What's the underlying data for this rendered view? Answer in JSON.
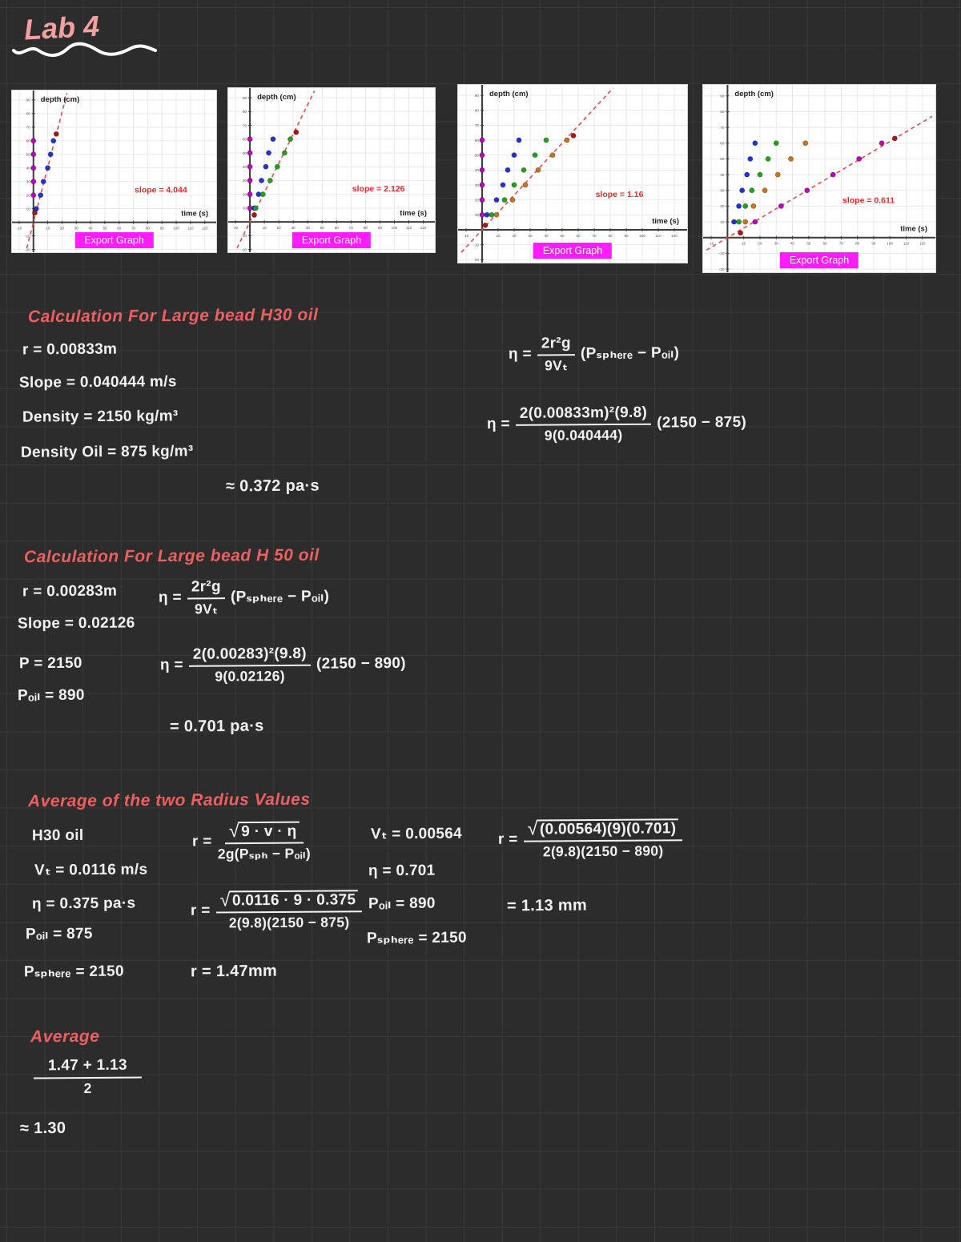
{
  "page": {
    "title": "Lab 4"
  },
  "colors": {
    "canvas_bg": "#2c2c2d",
    "grid_line": "#3a3a3b",
    "ink_white": "#f2f2f2",
    "ink_red_heading": "#ee5f5f",
    "title_pink": "#f5a0a0",
    "export_button_bg": "#ff1cff",
    "slope_text_red": "#e02b2b",
    "trend_line_red": "#e05050",
    "point_magenta": "#bb00bb",
    "point_blue": "#2233cc",
    "point_green": "#22a022",
    "point_orange": "#c07820",
    "point_darkred": "#aa1515"
  },
  "graphs": [
    {
      "ylabel": "depth (cm)",
      "xlabel": "time (s)",
      "slope_label": "slope = 4.044",
      "export_label": "Export Graph",
      "trend_slope": 4.044,
      "x_ticks": [
        -10,
        10,
        20,
        30,
        40,
        50,
        60,
        70,
        80,
        90,
        100,
        110,
        120
      ],
      "y_ticks": [
        -20,
        -10,
        10,
        20,
        30,
        40,
        50,
        60,
        70,
        80,
        90
      ],
      "series": [
        {
          "name": "magenta",
          "color": "#bb00bb",
          "points": [
            [
              0,
              20
            ],
            [
              0,
              30
            ],
            [
              0,
              40
            ],
            [
              0,
              50
            ],
            [
              0,
              60
            ]
          ]
        },
        {
          "name": "blue",
          "color": "#2233cc",
          "points": [
            [
              2,
              10
            ],
            [
              5,
              20
            ],
            [
              7,
              30
            ],
            [
              10,
              40
            ],
            [
              12,
              50
            ],
            [
              14,
              60
            ]
          ]
        },
        {
          "name": "darkred",
          "color": "#aa1515",
          "points": [
            [
              1,
              7
            ],
            [
              16,
              65
            ]
          ]
        }
      ]
    },
    {
      "ylabel": "depth (cm)",
      "xlabel": "time (s)",
      "slope_label": "slope = 2.126",
      "export_label": "Export Graph",
      "trend_slope": 2.126,
      "x_ticks": [
        -10,
        10,
        20,
        30,
        40,
        50,
        60,
        70,
        80,
        90,
        100,
        110,
        120
      ],
      "y_ticks": [
        -20,
        -10,
        10,
        20,
        30,
        40,
        50,
        60,
        70,
        80,
        90
      ],
      "series": [
        {
          "name": "magenta",
          "color": "#bb00bb",
          "points": [
            [
              0,
              10
            ],
            [
              0,
              20
            ],
            [
              0,
              30
            ],
            [
              0,
              40
            ],
            [
              0,
              50
            ],
            [
              0,
              60
            ]
          ]
        },
        {
          "name": "blue",
          "color": "#2233cc",
          "points": [
            [
              3,
              10
            ],
            [
              6,
              20
            ],
            [
              8,
              30
            ],
            [
              11,
              40
            ],
            [
              13,
              50
            ],
            [
              16,
              60
            ]
          ]
        },
        {
          "name": "green",
          "color": "#22a022",
          "points": [
            [
              4,
              10
            ],
            [
              9,
              20
            ],
            [
              14,
              30
            ],
            [
              19,
              40
            ],
            [
              24,
              50
            ],
            [
              28,
              60
            ]
          ]
        },
        {
          "name": "darkred",
          "color": "#aa1515",
          "points": [
            [
              3,
              5
            ],
            [
              32,
              65
            ]
          ]
        }
      ]
    },
    {
      "ylabel": "depth (cm)",
      "xlabel": "time (s)",
      "slope_label": "slope = 1.16",
      "export_label": "Export Graph",
      "trend_slope": 1.16,
      "x_ticks": [
        -10,
        10,
        20,
        30,
        40,
        50,
        60,
        70,
        80,
        90,
        100,
        110,
        120
      ],
      "y_ticks": [
        -20,
        -10,
        10,
        20,
        30,
        40,
        50,
        60,
        70,
        80,
        90
      ],
      "series": [
        {
          "name": "magenta",
          "color": "#bb00bb",
          "points": [
            [
              0,
              10
            ],
            [
              0,
              20
            ],
            [
              0,
              30
            ],
            [
              0,
              40
            ],
            [
              0,
              50
            ],
            [
              0,
              60
            ]
          ]
        },
        {
          "name": "blue",
          "color": "#2233cc",
          "points": [
            [
              3,
              10
            ],
            [
              9,
              20
            ],
            [
              13,
              30
            ],
            [
              16,
              40
            ],
            [
              20,
              50
            ],
            [
              23,
              60
            ]
          ]
        },
        {
          "name": "green",
          "color": "#22a022",
          "points": [
            [
              6,
              10
            ],
            [
              14,
              20
            ],
            [
              20,
              30
            ],
            [
              26,
              40
            ],
            [
              33,
              50
            ],
            [
              40,
              60
            ]
          ]
        },
        {
          "name": "orange",
          "color": "#c07820",
          "points": [
            [
              9,
              10
            ],
            [
              19,
              20
            ],
            [
              27,
              30
            ],
            [
              35,
              40
            ],
            [
              44,
              50
            ],
            [
              53,
              60
            ]
          ]
        },
        {
          "name": "darkred",
          "color": "#aa1515",
          "points": [
            [
              2,
              3
            ],
            [
              57,
              63
            ]
          ]
        }
      ]
    },
    {
      "ylabel": "depth (cm)",
      "xlabel": "time (s)",
      "slope_label": "slope = 0.611",
      "export_label": "Export Graph",
      "trend_slope": 0.611,
      "x_ticks": [
        -10,
        10,
        20,
        30,
        40,
        50,
        60,
        70,
        80,
        90,
        100,
        110,
        120
      ],
      "y_ticks": [
        -20,
        -10,
        10,
        20,
        30,
        40,
        50,
        60,
        70,
        80,
        90
      ],
      "series": [
        {
          "name": "blue",
          "color": "#2233cc",
          "points": [
            [
              4,
              10
            ],
            [
              7,
              20
            ],
            [
              9,
              30
            ],
            [
              12,
              40
            ],
            [
              14,
              50
            ],
            [
              17,
              60
            ]
          ]
        },
        {
          "name": "green",
          "color": "#22a022",
          "points": [
            [
              7,
              10
            ],
            [
              11,
              20
            ],
            [
              15,
              30
            ],
            [
              20,
              40
            ],
            [
              25,
              50
            ],
            [
              30,
              60
            ]
          ]
        },
        {
          "name": "orange",
          "color": "#c07820",
          "points": [
            [
              11,
              10
            ],
            [
              16,
              20
            ],
            [
              23,
              30
            ],
            [
              31,
              40
            ],
            [
              39,
              50
            ],
            [
              48,
              60
            ]
          ]
        },
        {
          "name": "magenta",
          "color": "#bb00bb",
          "points": [
            [
              17,
              10
            ],
            [
              33,
              20
            ],
            [
              49,
              30
            ],
            [
              65,
              40
            ],
            [
              81,
              50
            ],
            [
              95,
              60
            ]
          ]
        },
        {
          "name": "darkred",
          "color": "#aa1515",
          "points": [
            [
              8,
              3
            ],
            [
              103,
              63
            ]
          ]
        }
      ]
    }
  ],
  "calc1": {
    "heading": "Calculation For Large bead H30 oil",
    "r_line": "r = 0.00833m",
    "slope_line": "Slope = 0.040444 m/s",
    "density_line": "Density = 2150 kg/m³",
    "density_oil_line": "Density Oil = 875 kg/m³",
    "formula_sym": {
      "lhs": "η =",
      "num": "2r²g",
      "den": "9Vₜ",
      "rhs": "(Pₛₚₕₑᵣₑ − Pₒᵢₗ)"
    },
    "formula_num": {
      "lhs": "η =",
      "num": "2(0.00833m)²(9.8)",
      "den": "9(0.040444)",
      "rhs": "(2150 − 875)"
    },
    "result_line": "≈ 0.372 pa·s"
  },
  "calc2": {
    "heading": "Calculation For Large bead H 50 oil",
    "r_line": "r = 0.00283m",
    "slope_line": "Slope = 0.02126",
    "p_line": "P = 2150",
    "poil_line": "Pₒᵢₗ = 890",
    "formula_sym": {
      "lhs": "η =",
      "num": "2r²g",
      "den": "9Vₜ",
      "rhs": "(Pₛₚₕₑᵣₑ − Pₒᵢₗ)"
    },
    "formula_num": {
      "lhs": "η =",
      "num": "2(0.00283)²(9.8)",
      "den": "9(0.02126)",
      "rhs": "(2150 − 890)"
    },
    "result_line": "= 0.701 pa·s"
  },
  "averages": {
    "heading": "Average of the two Radius Values",
    "col1": [
      "H30 oil",
      "Vₜ = 0.0116 m/s",
      "η = 0.375 pa·s",
      "Pₒᵢₗ = 875",
      "Pₛₚₕₑᵣₑ = 2150"
    ],
    "col2_sym": {
      "lhs": "r =",
      "num": "9 · v · η",
      "den": "2g(Pₛₚₕ − Pₒᵢₗ)"
    },
    "col2_num": {
      "lhs": "r =",
      "num": "0.0116 · 9 · 0.375",
      "den": "2(9.8)(2150 − 875)"
    },
    "col2_result": "r = 1.47mm",
    "col3": [
      "Vₜ = 0.00564",
      "η = 0.701",
      "Pₒᵢₗ = 890",
      "Pₛₚₕₑᵣₑ = 2150"
    ],
    "col4_formula": {
      "lhs": "r =",
      "num": "(0.00564)(9)(0.701)",
      "den": "2(9.8)(2150 − 890)"
    },
    "col4_result": "= 1.13 mm"
  },
  "final": {
    "heading": "Average",
    "num": "1.47 + 1.13",
    "den": "2",
    "result": "≈ 1.30"
  },
  "chart_data": [
    {
      "type": "scatter",
      "title": "depth vs time, large bead H30 oil",
      "xlabel": "time (s)",
      "ylabel": "depth (cm)",
      "xlim": [
        -15,
        128
      ],
      "ylim": [
        -22,
        97
      ],
      "grid": true,
      "annotation": "slope = 4.044",
      "trend_slope": 4.044
    },
    {
      "type": "scatter",
      "title": "depth vs time, H50 oil",
      "xlabel": "time (s)",
      "ylabel": "depth (cm)",
      "xlim": [
        -15,
        128
      ],
      "ylim": [
        -22,
        97
      ],
      "grid": true,
      "annotation": "slope = 2.126",
      "trend_slope": 2.126
    },
    {
      "type": "scatter",
      "title": "depth vs time",
      "xlabel": "time (s)",
      "ylabel": "depth (cm)",
      "xlim": [
        -15,
        128
      ],
      "ylim": [
        -22,
        97
      ],
      "grid": true,
      "annotation": "slope = 1.16",
      "trend_slope": 1.16
    },
    {
      "type": "scatter",
      "title": "depth vs time, small bead",
      "xlabel": "time (s)",
      "ylabel": "depth (cm)",
      "xlim": [
        -15,
        128
      ],
      "ylim": [
        -22,
        97
      ],
      "grid": true,
      "annotation": "slope = 0.611",
      "trend_slope": 0.611
    }
  ]
}
